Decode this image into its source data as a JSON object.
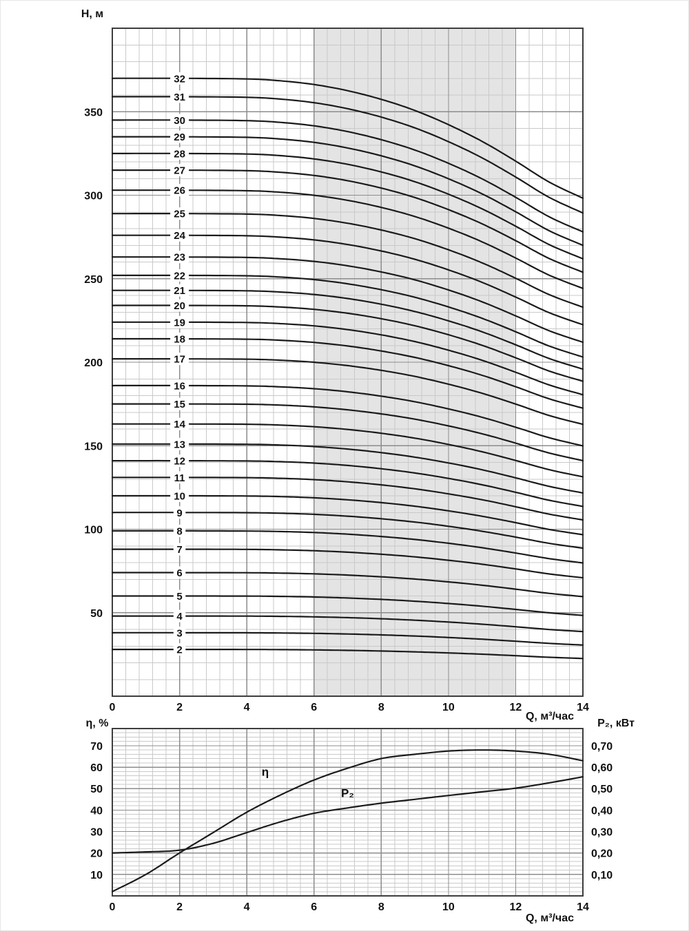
{
  "page": {
    "background": "#ffffff"
  },
  "chart_data": [
    {
      "id": "head-chart",
      "type": "line",
      "title": "",
      "ylabel": "H, м",
      "xlabel": "Q, м³/час",
      "xlim": [
        0,
        14
      ],
      "ylim": [
        0,
        400
      ],
      "grid": true,
      "legend": "none",
      "x_ticks": [
        0,
        2,
        4,
        6,
        8,
        10,
        12,
        14
      ],
      "x_tick_labels": [
        "0",
        "2",
        "4",
        "6",
        "8",
        "10",
        "12",
        "14"
      ],
      "y_ticks": [
        50,
        100,
        150,
        200,
        250,
        300,
        350
      ],
      "y_tick_labels": [
        "50",
        "100",
        "150",
        "200",
        "250",
        "300",
        "350"
      ],
      "x_minor_step": 0.4,
      "y_minor_step": 10,
      "operating_band": {
        "x_from": 6,
        "x_to": 12
      },
      "curve_label_x": 2,
      "stage_curves": {
        "description": "Pump head curves for 2-32 stages; H(Q) = H0 * shape_factor(Q)",
        "stages": [
          2,
          3,
          4,
          5,
          6,
          7,
          8,
          9,
          10,
          11,
          12,
          13,
          14,
          15,
          16,
          17,
          18,
          19,
          20,
          21,
          22,
          23,
          24,
          25,
          26,
          27,
          28,
          29,
          30,
          31,
          32
        ],
        "h0": [
          28,
          38,
          48,
          60,
          74,
          88,
          99,
          110,
          120,
          131,
          141,
          151,
          163,
          175,
          186,
          202,
          214,
          224,
          234,
          243,
          252,
          263,
          276,
          289,
          303,
          315,
          325,
          335,
          345,
          359,
          370
        ],
        "shape_q": [
          0,
          2,
          4,
          5,
          6,
          7,
          8,
          9,
          10,
          11,
          12,
          13,
          14
        ],
        "shape_factor": [
          1.0,
          1.0,
          0.999,
          0.996,
          0.99,
          0.98,
          0.966,
          0.948,
          0.925,
          0.898,
          0.866,
          0.832,
          0.806
        ]
      },
      "colors": {
        "curve": "#1b1b1b",
        "band": "#e4e4e4",
        "grid_minor": "#c9c9c9",
        "grid_major": "#8c8c8c",
        "frame": "#3d3d3d",
        "text": "#111111"
      }
    },
    {
      "id": "efficiency-power-chart",
      "type": "line",
      "title": "",
      "ylabel_left": "η, %",
      "ylabel_right": "P₂, кВт",
      "xlabel": "Q, м³/час",
      "xlim": [
        0,
        14
      ],
      "ylim_left": [
        0,
        78
      ],
      "ylim_right": [
        0,
        0.78
      ],
      "grid": true,
      "legend": "none",
      "x_ticks": [
        0,
        2,
        4,
        6,
        8,
        10,
        12,
        14
      ],
      "x_tick_labels": [
        "0",
        "2",
        "4",
        "6",
        "8",
        "10",
        "12",
        "14"
      ],
      "y_ticks_left": [
        10,
        20,
        30,
        40,
        50,
        60,
        70
      ],
      "y_tick_labels_left": [
        "10",
        "20",
        "30",
        "40",
        "50",
        "60",
        "70"
      ],
      "y_tick_labels_right": [
        "0,10",
        "0,20",
        "0,30",
        "0,40",
        "0,50",
        "0,60",
        "0,70"
      ],
      "x_minor_step": 0.4,
      "y_minor_step_left": 2,
      "series": [
        {
          "name": "η",
          "unit": "%",
          "axis": "left",
          "x": [
            0,
            1,
            2,
            3,
            4,
            5,
            6,
            7,
            8,
            9,
            10,
            11,
            12,
            13,
            14
          ],
          "y": [
            2,
            10,
            20,
            29.5,
            39,
            47,
            54,
            59.5,
            64,
            66,
            67.5,
            68,
            67.5,
            66,
            63
          ],
          "label": {
            "text": "η",
            "x": 4.55,
            "y": 56
          }
        },
        {
          "name": "P₂",
          "unit": "кВт",
          "axis": "right",
          "x": [
            0,
            1,
            2,
            3,
            4,
            5,
            6,
            7,
            8,
            9,
            10,
            11,
            12,
            13,
            14
          ],
          "y": [
            0.2,
            0.205,
            0.213,
            0.245,
            0.295,
            0.345,
            0.385,
            0.41,
            0.432,
            0.45,
            0.468,
            0.485,
            0.502,
            0.527,
            0.555
          ],
          "label": {
            "text": "P₂",
            "x": 7.0,
            "y": 46
          }
        }
      ],
      "colors": {
        "curve": "#1b1b1b",
        "grid_minor": "#c9c9c9",
        "grid_major": "#8c8c8c",
        "frame": "#3d3d3d",
        "text": "#111111"
      }
    }
  ]
}
